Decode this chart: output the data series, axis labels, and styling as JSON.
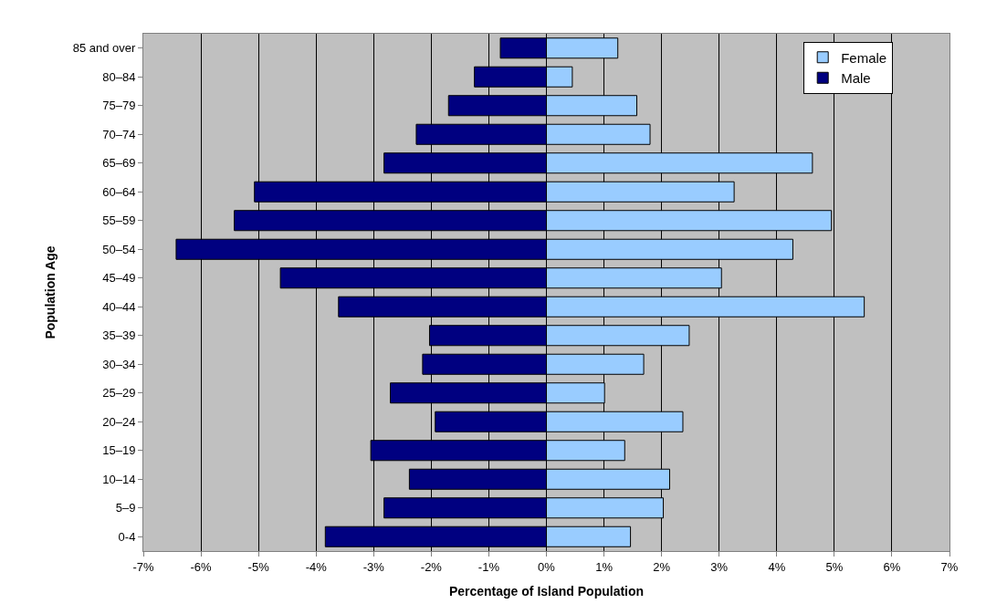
{
  "chart_data": {
    "type": "bar",
    "orientation": "horizontal",
    "xlabel": "Percentage of Island Population",
    "ylabel": "Population Age",
    "categories": [
      "85 and over",
      "80–84",
      "75–79",
      "70–74",
      "65–69",
      "60–64",
      "55–59",
      "50–54",
      "45–49",
      "40–44",
      "35–39",
      "30–34",
      "25–29",
      "20–24",
      "15–19",
      "10–14",
      "5–9",
      "0-4"
    ],
    "series": [
      {
        "name": "Female",
        "color": "#99ccff",
        "values": [
          1.24,
          0.45,
          1.57,
          1.8,
          4.62,
          3.26,
          4.95,
          4.28,
          3.04,
          5.52,
          2.48,
          1.69,
          1.01,
          2.37,
          1.36,
          2.14,
          2.03,
          1.46
        ]
      },
      {
        "name": "Male",
        "color": "#000080",
        "values": [
          -0.8,
          -1.25,
          -1.7,
          -2.26,
          -2.82,
          -5.07,
          -5.42,
          -6.43,
          -4.62,
          -3.61,
          -2.03,
          -2.15,
          -2.71,
          -1.93,
          -3.05,
          -2.38,
          -2.82,
          -3.84
        ]
      }
    ],
    "xlim": [
      -7,
      7
    ],
    "xticks": [
      {
        "value": -7,
        "label": "-7%"
      },
      {
        "value": -6,
        "label": "-6%"
      },
      {
        "value": -5,
        "label": "-5%"
      },
      {
        "value": -4,
        "label": "-4%"
      },
      {
        "value": -3,
        "label": "-3%"
      },
      {
        "value": -2,
        "label": "-2%"
      },
      {
        "value": -1,
        "label": "-1%"
      },
      {
        "value": 0,
        "label": "0%"
      },
      {
        "value": 1,
        "label": "1%"
      },
      {
        "value": 2,
        "label": "2%"
      },
      {
        "value": 3,
        "label": "3%"
      },
      {
        "value": 4,
        "label": "4%"
      },
      {
        "value": 5,
        "label": "5%"
      },
      {
        "value": 6,
        "label": "6%"
      },
      {
        "value": 7,
        "label": "7%"
      }
    ],
    "stacked": true,
    "grid": "x",
    "legend": "top right"
  }
}
